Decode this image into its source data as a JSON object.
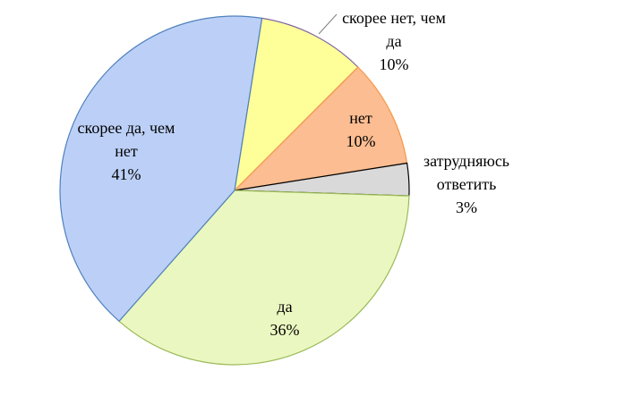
{
  "chart_data": {
    "type": "pie",
    "categories": [
      "скорее нет, чем да",
      "нет",
      "затрудняюсь ответить",
      "да",
      "скорее да, чем нет"
    ],
    "values": [
      10,
      10,
      3,
      36,
      41
    ],
    "value_labels": [
      "10%",
      "10%",
      "3%",
      "36%",
      "41%"
    ],
    "colors": [
      "#ffff99",
      "#fbbd91",
      "#d9d9d9",
      "#ebf7c0",
      "#bcd0f7"
    ],
    "edge_colors": [
      "#8064a2",
      "#f79646",
      "#000000",
      "#9bbb59",
      "#4f81bd"
    ]
  }
}
